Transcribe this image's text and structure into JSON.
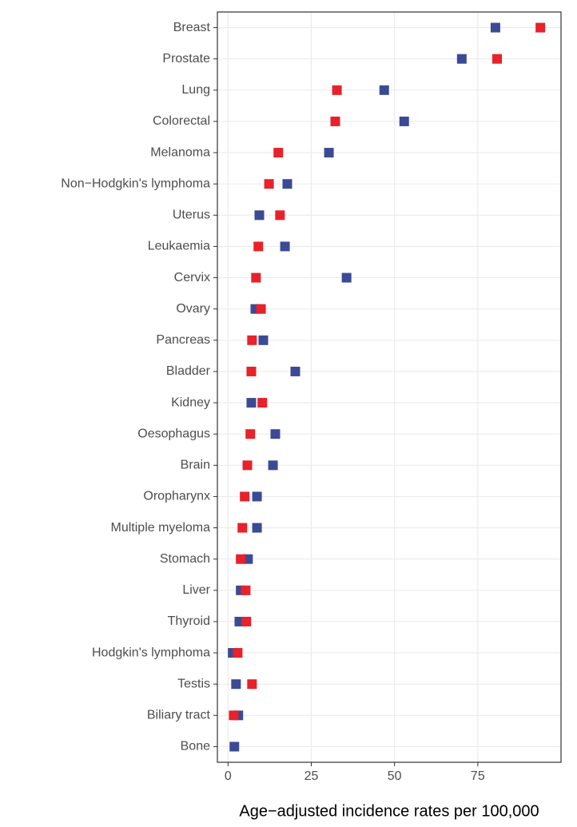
{
  "chart_data": {
    "type": "dot",
    "x_label": "Age−adjusted incidence rates per 100,000",
    "categories": [
      "Breast",
      "Prostate",
      "Lung",
      "Colorectal",
      "Melanoma",
      "Non−Hodgkin's lymphoma",
      "Uterus",
      "Leukaemia",
      "Cervix",
      "Ovary",
      "Pancreas",
      "Bladder",
      "Kidney",
      "Oesophagus",
      "Brain",
      "Oropharynx",
      "Multiple myeloma",
      "Stomach",
      "Liver",
      "Thyroid",
      "Hodgkin's lymphoma",
      "Testis",
      "Biliary tract",
      "Bone"
    ],
    "series": [
      {
        "color": "#3b4a94",
        "values": [
          80.3,
          70.2,
          46.9,
          52.9,
          30.3,
          17.8,
          9.4,
          17.1,
          35.6,
          8.2,
          10.6,
          20.2,
          7.0,
          14.2,
          13.5,
          8.7,
          8.7,
          6.0,
          3.8,
          3.4,
          1.4,
          2.4,
          3.1,
          1.9
        ]
      },
      {
        "color": "#e8212a",
        "values": [
          93.8,
          80.8,
          32.7,
          32.2,
          15.1,
          12.3,
          15.6,
          9.1,
          8.4,
          9.9,
          7.2,
          7.0,
          10.3,
          6.7,
          5.8,
          5.0,
          4.3,
          3.8,
          5.3,
          5.5,
          2.9,
          7.2,
          1.7,
          null
        ]
      }
    ],
    "xlim": [
      -3.2,
      100
    ],
    "xticks": [
      0,
      25,
      50,
      75
    ],
    "grid": true
  }
}
